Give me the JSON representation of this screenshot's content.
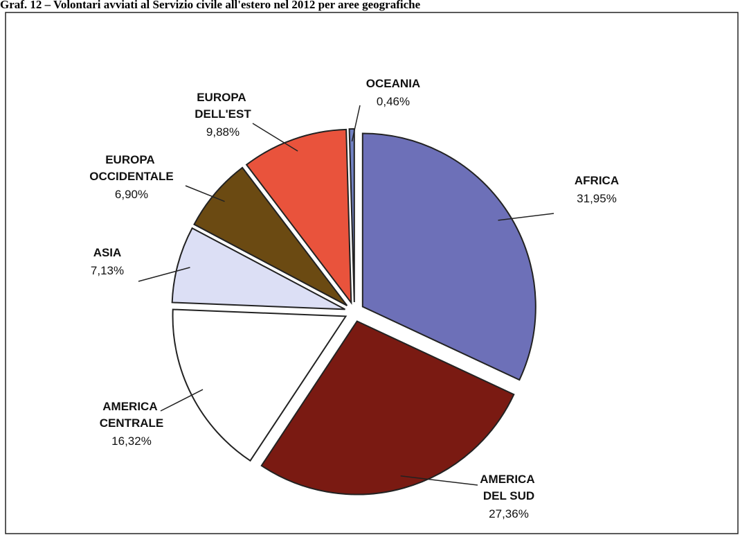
{
  "chart_data": {
    "type": "pie",
    "title": "Graf. 12 – Volontari avviati al Servizio civile all'estero nel 2012 per aree geografiche",
    "categories": [
      "Africa",
      "America del Sud",
      "America centrale",
      "Asia",
      "Europa occidentale",
      "Europa dell'Est",
      "Oceania"
    ],
    "values": [
      31.95,
      27.36,
      16.32,
      7.13,
      6.9,
      9.88,
      0.46
    ],
    "value_labels": [
      "31,95%",
      "27,36%",
      "16,32%",
      "7,13%",
      "6,90%",
      "9,88%",
      "0,46%"
    ],
    "colors": [
      "#6d70b8",
      "#7a1a12",
      "#ffffff",
      "#dcdff5",
      "#6b4a12",
      "#e9533c",
      "#7282c4"
    ]
  }
}
